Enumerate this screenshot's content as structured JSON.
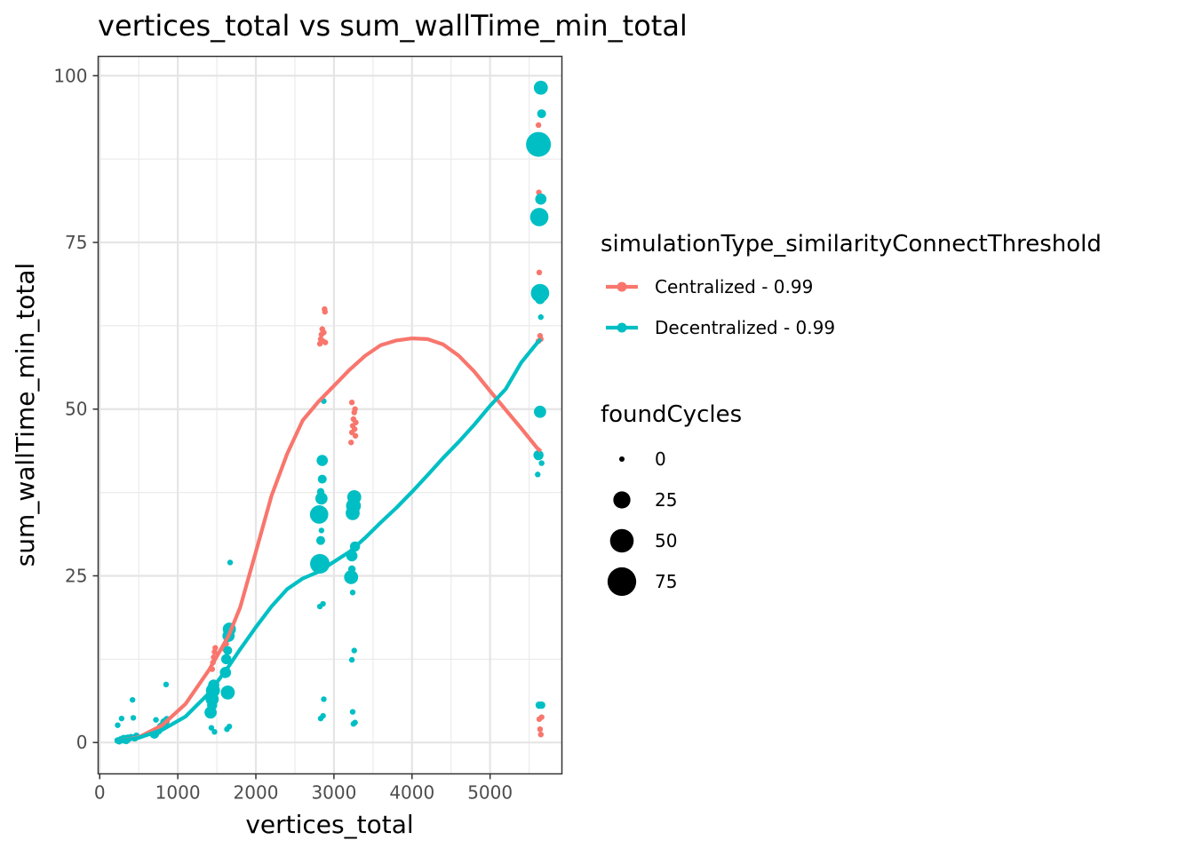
{
  "chart_data": {
    "type": "scatter",
    "title": "vertices_total  vs  sum_wallTime_min_total",
    "xlabel": "vertices_total",
    "ylabel": "sum_wallTime_min_total",
    "xlim": [
      -20,
      5920
    ],
    "ylim": [
      -4.7,
      102.9
    ],
    "x_ticks": [
      0,
      1000,
      2000,
      3000,
      4000,
      5000
    ],
    "x_tick_labels": [
      "0",
      "1000",
      "2000",
      "3000",
      "4000",
      "5000"
    ],
    "y_ticks": [
      0,
      25,
      50,
      75,
      100
    ],
    "y_tick_labels": [
      "0",
      "25",
      "50",
      "75",
      "100"
    ],
    "grid": true,
    "legend_placement": "right",
    "color_legend": {
      "title": "simulationType_similarityConnectThreshold",
      "entries": [
        {
          "label": "Centralized - 0.99",
          "color": "#F8766D"
        },
        {
          "label": "Decentralized - 0.99",
          "color": "#00BFC4"
        }
      ]
    },
    "size_legend": {
      "title": "foundCycles",
      "entries": [
        {
          "label": "0",
          "value": 0
        },
        {
          "label": "25",
          "value": 25
        },
        {
          "label": "50",
          "value": 50
        },
        {
          "label": "75",
          "value": 75
        }
      ]
    },
    "series": [
      {
        "name": "Centralized - 0.99",
        "color": "#F8766D",
        "points": [
          [
            260,
            0.4,
            0
          ],
          [
            300,
            0.6,
            0
          ],
          [
            380,
            0.7,
            0
          ],
          [
            440,
            0.6,
            0
          ],
          [
            720,
            1.6,
            0
          ],
          [
            780,
            2.0,
            0
          ],
          [
            820,
            2.6,
            0
          ],
          [
            860,
            3.1,
            0
          ],
          [
            1440,
            11.0,
            0
          ],
          [
            1450,
            12.0,
            0
          ],
          [
            1460,
            12.8,
            0
          ],
          [
            1470,
            13.6,
            0
          ],
          [
            1480,
            14.2,
            0
          ],
          [
            1600,
            14.0,
            0
          ],
          [
            1620,
            14.8,
            0
          ],
          [
            1640,
            15.5,
            0
          ],
          [
            1660,
            16.2,
            0
          ],
          [
            1680,
            16.8,
            0
          ],
          [
            2820,
            59.8,
            0
          ],
          [
            2830,
            60.5,
            0
          ],
          [
            2840,
            61.2,
            0
          ],
          [
            2850,
            62.0,
            0
          ],
          [
            2860,
            60.2,
            0
          ],
          [
            2870,
            61.5,
            0
          ],
          [
            2880,
            65.0,
            0
          ],
          [
            2885,
            64.6,
            0
          ],
          [
            2890,
            60.0,
            0
          ],
          [
            3220,
            45.0,
            0
          ],
          [
            3230,
            46.5,
            0
          ],
          [
            3240,
            47.5,
            0
          ],
          [
            3250,
            48.5,
            0
          ],
          [
            3260,
            49.5,
            0
          ],
          [
            3270,
            50.0,
            0
          ],
          [
            3280,
            48.0,
            0
          ],
          [
            3230,
            51.0,
            0
          ],
          [
            3265,
            47.0,
            0
          ],
          [
            3275,
            46.0,
            0
          ],
          [
            5620,
            92.6,
            0
          ],
          [
            5625,
            82.5,
            0
          ],
          [
            5630,
            70.5,
            0
          ],
          [
            5640,
            61.0,
            0
          ],
          [
            5650,
            60.5,
            0
          ],
          [
            5620,
            60.2,
            0
          ],
          [
            5630,
            3.5,
            0
          ],
          [
            5640,
            2.0,
            0
          ],
          [
            5650,
            1.2,
            0
          ],
          [
            5660,
            3.8,
            0
          ]
        ]
      },
      {
        "name": "Decentralized - 0.99",
        "color": "#00BFC4",
        "points": [
          [
            230,
            0.3,
            1
          ],
          [
            250,
            0.2,
            1
          ],
          [
            270,
            0.4,
            2
          ],
          [
            280,
            3.6,
            0
          ],
          [
            230,
            2.6,
            0
          ],
          [
            310,
            0.5,
            4
          ],
          [
            340,
            0.3,
            2
          ],
          [
            360,
            0.6,
            3
          ],
          [
            400,
            0.8,
            1
          ],
          [
            420,
            6.4,
            0
          ],
          [
            430,
            3.7,
            0
          ],
          [
            450,
            0.7,
            2
          ],
          [
            470,
            1.0,
            1
          ],
          [
            700,
            1.3,
            5
          ],
          [
            720,
            3.4,
            0
          ],
          [
            750,
            1.8,
            3
          ],
          [
            780,
            2.4,
            2
          ],
          [
            830,
            3.0,
            4
          ],
          [
            850,
            8.7,
            0
          ],
          [
            860,
            3.5,
            1
          ],
          [
            1420,
            4.5,
            10
          ],
          [
            1440,
            6.5,
            12
          ],
          [
            1450,
            7.8,
            14
          ],
          [
            1460,
            8.6,
            8
          ],
          [
            1430,
            2.2,
            0
          ],
          [
            1470,
            1.6,
            0
          ],
          [
            1440,
            5.6,
            6
          ],
          [
            1610,
            10.5,
            8
          ],
          [
            1620,
            12.5,
            6
          ],
          [
            1640,
            7.5,
            14
          ],
          [
            1650,
            16.0,
            10
          ],
          [
            1660,
            17.0,
            12
          ],
          [
            1670,
            27.0,
            0
          ],
          [
            1630,
            2.0,
            0
          ],
          [
            1660,
            2.4,
            0
          ],
          [
            1640,
            13.8,
            4
          ],
          [
            2810,
            34.2,
            26
          ],
          [
            2820,
            26.8,
            30
          ],
          [
            2830,
            30.3,
            4
          ],
          [
            2840,
            36.6,
            10
          ],
          [
            2850,
            42.3,
            8
          ],
          [
            2840,
            31.8,
            0
          ],
          [
            2850,
            39.5,
            4
          ],
          [
            2860,
            20.8,
            0
          ],
          [
            2870,
            6.5,
            0
          ],
          [
            2860,
            4.0,
            0
          ],
          [
            2830,
            3.6,
            0
          ],
          [
            2870,
            51.2,
            0
          ],
          [
            2820,
            20.4,
            0
          ],
          [
            2830,
            37.6,
            2
          ],
          [
            3220,
            24.8,
            14
          ],
          [
            3230,
            28.0,
            8
          ],
          [
            3240,
            34.4,
            14
          ],
          [
            3250,
            35.5,
            16
          ],
          [
            3260,
            36.8,
            14
          ],
          [
            3270,
            29.4,
            6
          ],
          [
            3230,
            26.0,
            2
          ],
          [
            3240,
            4.6,
            0
          ],
          [
            3250,
            2.8,
            0
          ],
          [
            3260,
            13.8,
            0
          ],
          [
            3230,
            12.4,
            0
          ],
          [
            3240,
            22.5,
            0
          ],
          [
            3270,
            3.0,
            0
          ],
          [
            5620,
            89.7,
            50
          ],
          [
            5630,
            78.8,
            26
          ],
          [
            5640,
            67.4,
            26
          ],
          [
            5650,
            81.5,
            8
          ],
          [
            5660,
            94.3,
            4
          ],
          [
            5650,
            98.2,
            14
          ],
          [
            5640,
            49.6,
            10
          ],
          [
            5620,
            43.1,
            6
          ],
          [
            5650,
            63.8,
            0
          ],
          [
            5660,
            41.9,
            0
          ],
          [
            5610,
            40.2,
            0
          ],
          [
            5640,
            66.5,
            6
          ],
          [
            5630,
            5.6,
            2
          ],
          [
            5660,
            5.6,
            2
          ]
        ]
      }
    ],
    "smooth_lines": [
      {
        "name": "Centralized - 0.99",
        "color": "#F8766D",
        "points": [
          [
            240,
            0.2
          ],
          [
            500,
            0.8
          ],
          [
            800,
            2.6
          ],
          [
            1100,
            5.8
          ],
          [
            1400,
            10.9
          ],
          [
            1650,
            16.0
          ],
          [
            1800,
            20.3
          ],
          [
            2000,
            28.6
          ],
          [
            2200,
            37.0
          ],
          [
            2400,
            43.3
          ],
          [
            2600,
            48.3
          ],
          [
            2800,
            51.1
          ],
          [
            3000,
            53.5
          ],
          [
            3200,
            55.9
          ],
          [
            3400,
            58.0
          ],
          [
            3600,
            59.6
          ],
          [
            3800,
            60.3
          ],
          [
            4000,
            60.6
          ],
          [
            4200,
            60.5
          ],
          [
            4400,
            59.7
          ],
          [
            4600,
            58.0
          ],
          [
            4800,
            55.6
          ],
          [
            5000,
            52.7
          ],
          [
            5200,
            49.9
          ],
          [
            5400,
            47.1
          ],
          [
            5600,
            44.2
          ],
          [
            5650,
            43.7
          ]
        ]
      },
      {
        "name": "Decentralized - 0.99",
        "color": "#00BFC4",
        "points": [
          [
            240,
            0.2
          ],
          [
            500,
            0.7
          ],
          [
            800,
            1.9
          ],
          [
            1100,
            3.9
          ],
          [
            1400,
            7.4
          ],
          [
            1650,
            11.4
          ],
          [
            1800,
            14.0
          ],
          [
            2000,
            17.3
          ],
          [
            2200,
            20.4
          ],
          [
            2400,
            23.0
          ],
          [
            2600,
            24.6
          ],
          [
            2800,
            25.6
          ],
          [
            3000,
            27.1
          ],
          [
            3200,
            28.6
          ],
          [
            3400,
            30.7
          ],
          [
            3600,
            33.0
          ],
          [
            3800,
            35.2
          ],
          [
            4000,
            37.6
          ],
          [
            4200,
            40.1
          ],
          [
            4400,
            42.7
          ],
          [
            4600,
            45.1
          ],
          [
            4800,
            47.7
          ],
          [
            5000,
            50.5
          ],
          [
            5200,
            53.0
          ],
          [
            5400,
            57.0
          ],
          [
            5600,
            59.9
          ],
          [
            5650,
            60.5
          ]
        ]
      }
    ]
  }
}
